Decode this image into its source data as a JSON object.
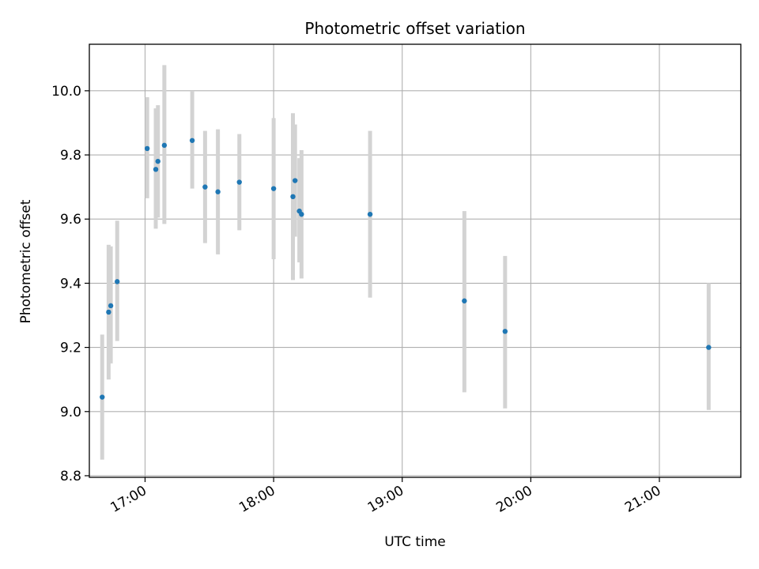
{
  "chart_data": {
    "type": "scatter",
    "title": "Photometric offset variation",
    "xlabel": "UTC time",
    "ylabel": "Photometric offset",
    "x_axis_type": "time",
    "xlim": [
      "16:34",
      "21:38"
    ],
    "ylim": [
      8.795,
      10.145
    ],
    "x_ticks": [
      "17:00",
      "18:00",
      "19:00",
      "20:00",
      "21:00"
    ],
    "y_ticks": [
      8.8,
      9.0,
      9.2,
      9.4,
      9.6,
      9.8,
      10.0
    ],
    "grid": true,
    "legend": "none",
    "colors": {
      "point": "#1f77b4",
      "errorbar": "#d3d3d3",
      "grid": "#b0b0b0",
      "axes": "#000000"
    },
    "series": [
      {
        "points": [
          {
            "x": "16:40",
            "y": 9.045,
            "yerr_low": 8.85,
            "yerr_high": 9.24
          },
          {
            "x": "16:43",
            "y": 9.31,
            "yerr_low": 9.1,
            "yerr_high": 9.52
          },
          {
            "x": "16:44",
            "y": 9.33,
            "yerr_low": 9.15,
            "yerr_high": 9.515
          },
          {
            "x": "16:47",
            "y": 9.405,
            "yerr_low": 9.22,
            "yerr_high": 9.595
          },
          {
            "x": "17:01",
            "y": 9.82,
            "yerr_low": 9.665,
            "yerr_high": 9.98
          },
          {
            "x": "17:05",
            "y": 9.755,
            "yerr_low": 9.57,
            "yerr_high": 9.945
          },
          {
            "x": "17:06",
            "y": 9.78,
            "yerr_low": 9.605,
            "yerr_high": 9.955
          },
          {
            "x": "17:09",
            "y": 9.83,
            "yerr_low": 9.585,
            "yerr_high": 10.08
          },
          {
            "x": "17:22",
            "y": 9.845,
            "yerr_low": 9.695,
            "yerr_high": 10.0
          },
          {
            "x": "17:28",
            "y": 9.7,
            "yerr_low": 9.525,
            "yerr_high": 9.875
          },
          {
            "x": "17:34",
            "y": 9.685,
            "yerr_low": 9.49,
            "yerr_high": 9.88
          },
          {
            "x": "17:44",
            "y": 9.715,
            "yerr_low": 9.565,
            "yerr_high": 9.865
          },
          {
            "x": "18:00",
            "y": 9.695,
            "yerr_low": 9.475,
            "yerr_high": 9.915
          },
          {
            "x": "18:09",
            "y": 9.67,
            "yerr_low": 9.41,
            "yerr_high": 9.93
          },
          {
            "x": "18:10",
            "y": 9.72,
            "yerr_low": 9.545,
            "yerr_high": 9.895
          },
          {
            "x": "18:12",
            "y": 9.625,
            "yerr_low": 9.465,
            "yerr_high": 9.79
          },
          {
            "x": "18:13",
            "y": 9.615,
            "yerr_low": 9.415,
            "yerr_high": 9.815
          },
          {
            "x": "18:45",
            "y": 9.615,
            "yerr_low": 9.355,
            "yerr_high": 9.875
          },
          {
            "x": "19:29",
            "y": 9.345,
            "yerr_low": 9.06,
            "yerr_high": 9.625
          },
          {
            "x": "19:48",
            "y": 9.25,
            "yerr_low": 9.01,
            "yerr_high": 9.485
          },
          {
            "x": "21:23",
            "y": 9.2,
            "yerr_low": 9.005,
            "yerr_high": 9.4
          }
        ]
      }
    ]
  }
}
